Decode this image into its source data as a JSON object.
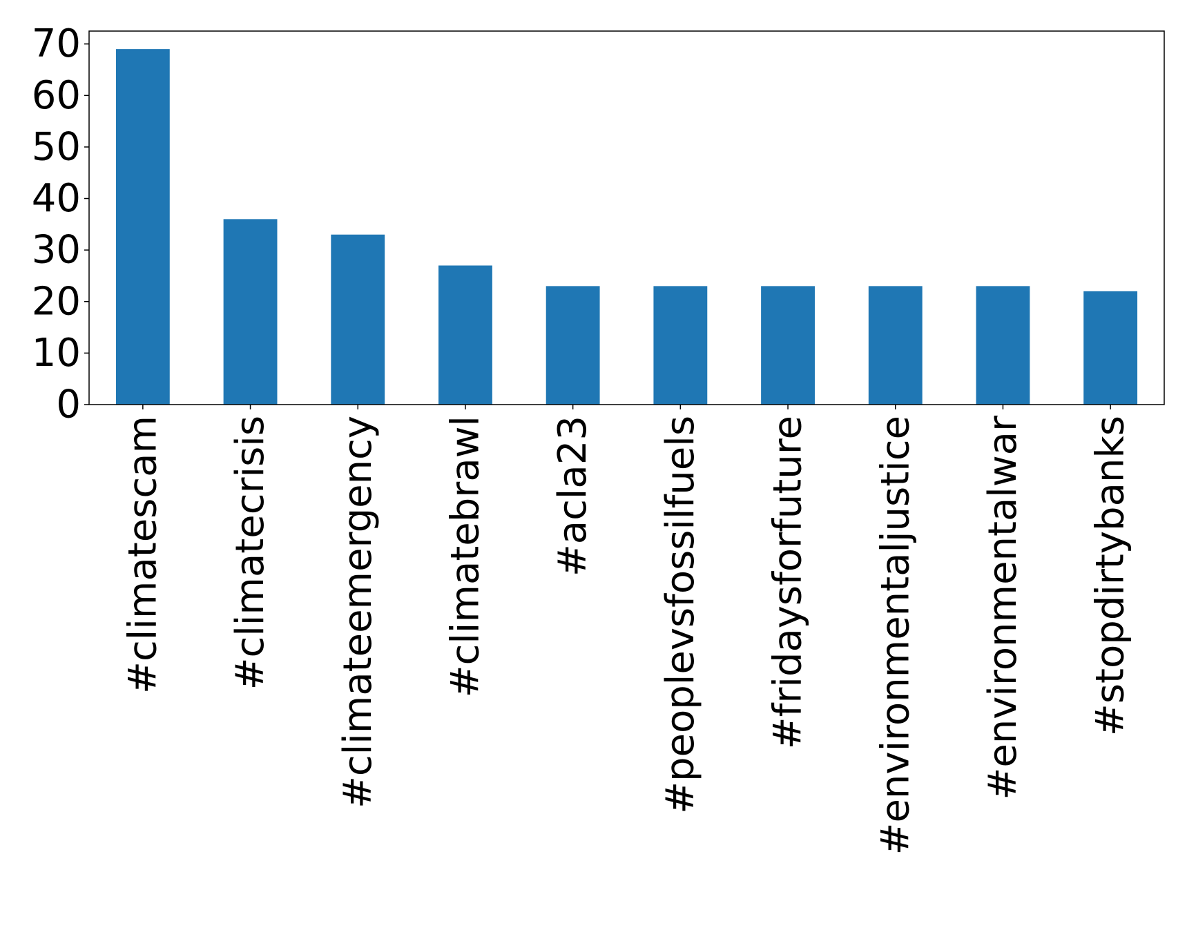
{
  "chart_data": {
    "type": "bar",
    "title": "",
    "xlabel": "",
    "ylabel": "",
    "categories": [
      "#climatescam",
      "#climatecrisis",
      "#climateemergency",
      "#climatebrawl",
      "#acla23",
      "#peoplevsfossilfuels",
      "#fridaysforfuture",
      "#environmentaljustice",
      "#environmentalwar",
      "#stopdirtybanks"
    ],
    "values": [
      69,
      36,
      33,
      27,
      23,
      23,
      23,
      23,
      23,
      22
    ],
    "ylim": [
      0,
      72.5
    ],
    "yticks": [
      0,
      10,
      20,
      30,
      40,
      50,
      60,
      70
    ],
    "grid": false,
    "legend": "none",
    "bar_color": "#1f77b4"
  }
}
